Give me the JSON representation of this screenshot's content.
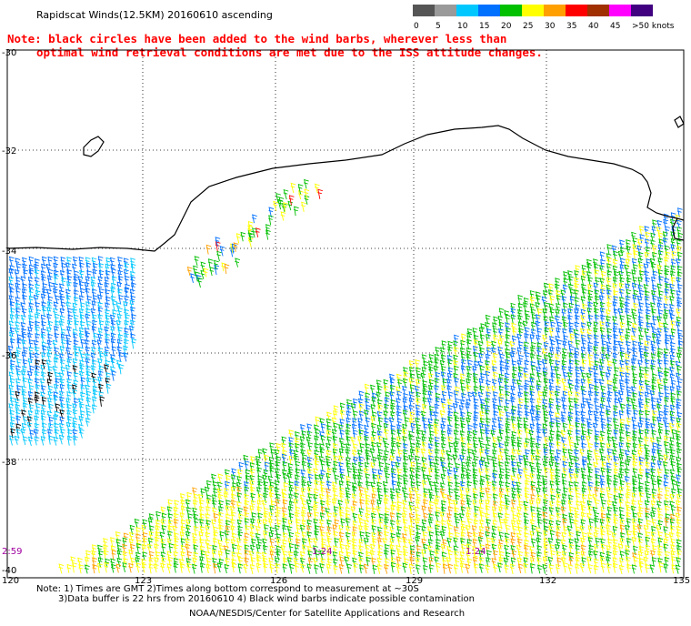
{
  "title": "Rapidscat Winds(12.5KM) 20160610 ascending",
  "note_line1": "Note: black circles have been added to the wind barbs, wherever less than",
  "note_line2": "optimal wind retrieval conditions are met due to the ISS attitude changes.",
  "legend": {
    "labels": [
      "0",
      "5",
      "10",
      "15",
      "20",
      "25",
      "30",
      "35",
      "40",
      "45",
      ">50 knots"
    ],
    "colors": [
      "#555555",
      "#9a9a9a",
      "#00c8ff",
      "#0070ff",
      "#00c000",
      "#ffff00",
      "#ffa000",
      "#ff0000",
      "#a03000",
      "#ff00ff",
      "#400080"
    ]
  },
  "lat_labels": [
    "-30",
    "-32",
    "-34",
    "-36",
    "-38",
    "-40"
  ],
  "lon_labels": [
    "120",
    "123",
    "126",
    "129",
    "132",
    "135"
  ],
  "times": [
    "2:59",
    "1:24",
    "1:24"
  ],
  "footer_line1": "Note: 1) Times are GMT 2)Times along bottom correspond to measurement at ~30S",
  "footer_line2": "3)Data buffer is 22 hrs from 20160610 4) Black wind barbs indicate possible contamination",
  "footer_line3": "NOAA/NESDIS/Center for Satellite Applications and Research",
  "colors": {
    "note": "#ff0000",
    "time": "#a000a0",
    "coast": "#000000",
    "grid": "#000000"
  }
}
